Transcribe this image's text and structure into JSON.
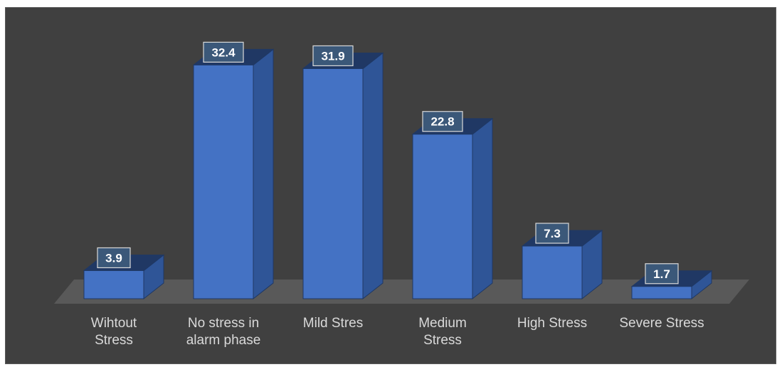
{
  "chart_data": {
    "type": "bar",
    "style": "3d-column",
    "categories": [
      "Wihtout\nStress",
      "No stress in\nalarm phase",
      "Mild Stres",
      "Medium\nStress",
      "High Stress",
      "Severe Stress"
    ],
    "values": [
      3.9,
      32.4,
      31.9,
      22.8,
      7.3,
      1.7
    ],
    "title": "",
    "xlabel": "",
    "ylabel": "",
    "ylim": [
      0,
      35
    ],
    "grid": false,
    "legend": "none",
    "data_labels": true
  },
  "colors": {
    "background": "#404040",
    "floor": "#595959",
    "bar_front": "#4472c4",
    "bar_side": "#2f5597",
    "bar_top": "#203864",
    "bar_edge": "#1f3864",
    "label_box": "#3b5879",
    "label_border": "#d9d9d9",
    "label_text": "#ffffff",
    "axis_text": "#d9d9d9"
  }
}
